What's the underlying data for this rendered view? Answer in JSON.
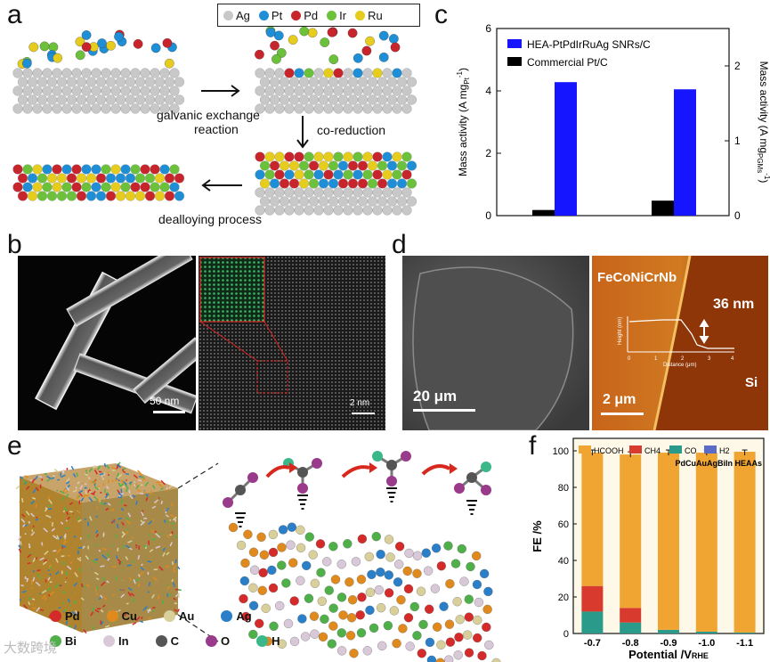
{
  "panel_labels": {
    "a": "a",
    "b": "b",
    "c": "c",
    "d": "d",
    "e": "e",
    "f": "f"
  },
  "panel_a": {
    "legend": [
      {
        "symbol": "Ag",
        "color": "#c8c8c8"
      },
      {
        "symbol": "Pt",
        "color": "#1e8fd6"
      },
      {
        "symbol": "Pd",
        "color": "#c8242c"
      },
      {
        "symbol": "Ir",
        "color": "#6cc13a"
      },
      {
        "symbol": "Ru",
        "color": "#e6cc1c"
      }
    ],
    "step1": "galvanic exchange",
    "step1b": "reaction",
    "step2": "co-reduction",
    "step3": "dealloying process"
  },
  "panel_b": {
    "scale_left": "50 nm",
    "scale_right": "2 nm"
  },
  "panel_d": {
    "scale_left": "20 μm",
    "scale_right": "2 μm",
    "material": "FeCoNiCrNb",
    "thickness": "36 nm",
    "substrate": "Si",
    "inset_xlabel": "Distance (μm)",
    "inset_ylabel": "Height (nm)",
    "inset_xticks": [
      "0",
      "1",
      "2",
      "3",
      "4"
    ]
  },
  "panel_e": {
    "elements": [
      {
        "symbol": "Pd",
        "color": "#d42a2a"
      },
      {
        "symbol": "Cu",
        "color": "#e08a1e"
      },
      {
        "symbol": "Au",
        "color": "#d8cf9a"
      },
      {
        "symbol": "Ag",
        "color": "#2a7fc8"
      },
      {
        "symbol": "Bi",
        "color": "#4fb04a"
      },
      {
        "symbol": "In",
        "color": "#d8c8d8"
      },
      {
        "symbol": "C",
        "color": "#555555"
      },
      {
        "symbol": "O",
        "color": "#9a3a8a"
      },
      {
        "symbol": "H",
        "color": "#3ab88a"
      }
    ],
    "watermark": "大数跨境"
  },
  "chart_data": [
    {
      "panel": "c",
      "type": "bar",
      "categories": [
        "",
        ""
      ],
      "series": [
        {
          "name": "HEA-PtPdIrRuAg SNRs/C",
          "color": "#1515ff",
          "values": [
            4.28,
            4.05
          ]
        },
        {
          "name": "Commercial Pt/C",
          "color": "#000000",
          "values": [
            0.18,
            0.48
          ]
        }
      ],
      "ylabel": "Mass activity (A mgPt-1)",
      "ylabel2": "Mass activity (A mgPGMs-1)",
      "ylim": [
        0,
        6
      ],
      "ylim2": [
        0,
        2.5
      ],
      "yticks": [
        "0",
        "2",
        "4",
        "6"
      ],
      "yticks2": [
        "0",
        "1",
        "2"
      ],
      "legend": "top-left"
    },
    {
      "panel": "f",
      "type": "bar",
      "stacked": true,
      "categories": [
        "-0.7",
        "-0.8",
        "-0.9",
        "-1.0",
        "-1.1"
      ],
      "series": [
        {
          "name": "HCOOH",
          "color": "#f0a532",
          "values": [
            73,
            84,
            97,
            98,
            99
          ]
        },
        {
          "name": "CH4",
          "color": "#d83a2e",
          "values": [
            14,
            8,
            0,
            0,
            0
          ]
        },
        {
          "name": "CO",
          "color": "#2a9a8a",
          "values": [
            12,
            6,
            2,
            1,
            0.5
          ]
        },
        {
          "name": "H2",
          "color": "#5b6bc8",
          "values": [
            0,
            0,
            0,
            0,
            0
          ]
        }
      ],
      "totals": [
        99,
        98,
        99,
        99,
        99
      ],
      "annotation": "PdCuAuAgBiIn HEAAs",
      "xlabel": "Potential /VRHE",
      "ylabel": "FE /%",
      "ylim": [
        0,
        100
      ],
      "yticks": [
        "0",
        "20",
        "40",
        "60",
        "80",
        "100"
      ],
      "legend": "top"
    }
  ]
}
